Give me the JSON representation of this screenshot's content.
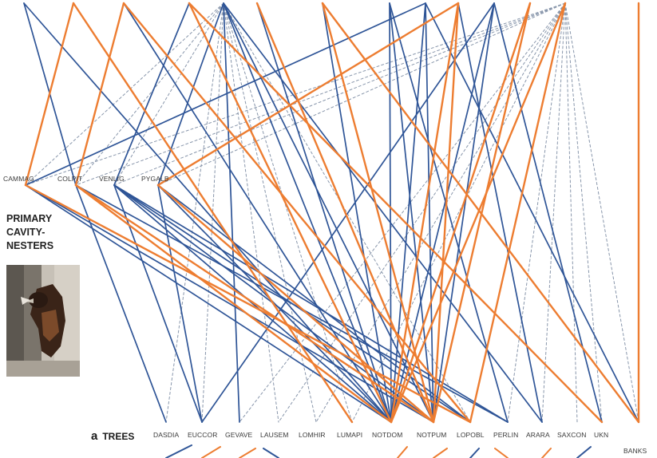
{
  "section_title": [
    "PRIMARY",
    "CAVITY-",
    "NESTERS"
  ],
  "trees_heading": {
    "letter": "a",
    "word": "TREES"
  },
  "colors": {
    "blue": "#2f5597",
    "orange": "#ed7d31",
    "dashed": "#8896ab"
  },
  "legend_image": "woodpecker-photo",
  "primary_nodes": [
    {
      "id": "CAMMAG",
      "label": "CAMMAG"
    },
    {
      "id": "COLPIT",
      "label": "COLPIT"
    },
    {
      "id": "VENLIG",
      "label": "VENLIG"
    },
    {
      "id": "PYGALB",
      "label": "PYGALB"
    }
  ],
  "tree_nodes": [
    {
      "id": "DASDIA",
      "label": "DASDIA"
    },
    {
      "id": "EUCCOR",
      "label": "EUCCOR"
    },
    {
      "id": "GEVAVE",
      "label": "GEVAVE"
    },
    {
      "id": "LAUSEM",
      "label": "LAUSEM"
    },
    {
      "id": "LOMHIR",
      "label": "LOMHIR"
    },
    {
      "id": "LUMAPI",
      "label": "LUMAPI"
    },
    {
      "id": "NOTDOM",
      "label": "NOTDOM"
    },
    {
      "id": "NOTPUM",
      "label": "NOTPUM"
    },
    {
      "id": "LOPOBL",
      "label": "LOPOBL"
    },
    {
      "id": "PERLIN",
      "label": "PERLIN"
    },
    {
      "id": "ARARA",
      "label": "ARARA"
    },
    {
      "id": "SAXCON",
      "label": "SAXCON"
    },
    {
      "id": "UKN",
      "label": "UKN"
    },
    {
      "id": "BANKS",
      "label": "BANKS"
    }
  ],
  "upper_node_count": 14
}
